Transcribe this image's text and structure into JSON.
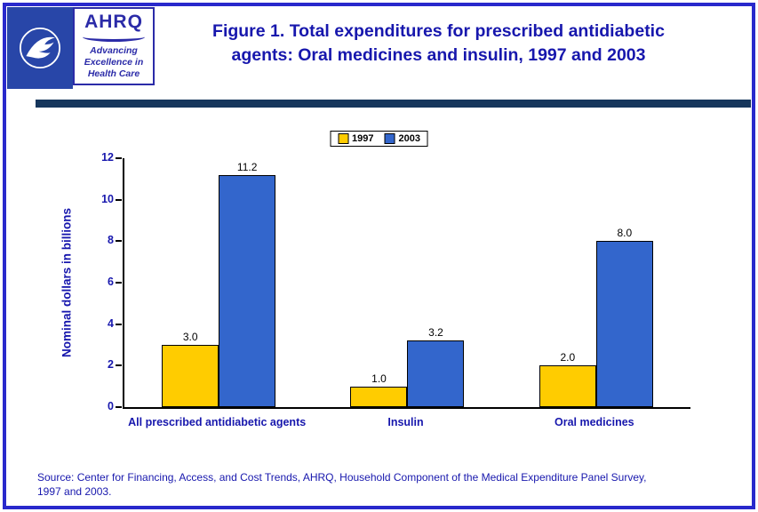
{
  "header": {
    "ahrq_logo_word": "AHRQ",
    "ahrq_tagline_line1": "Advancing",
    "ahrq_tagline_line2": "Excellence in",
    "ahrq_tagline_line3": "Health Care",
    "title_line1": "Figure 1. Total expenditures for prescribed antidiabetic",
    "title_line2": "agents: Oral medicines and insulin, 1997 and 2003"
  },
  "chart_data": {
    "type": "bar",
    "title": "Figure 1. Total expenditures for prescribed antidiabetic agents: Oral medicines and insulin, 1997 and 2003",
    "categories": [
      "All prescribed antidiabetic agents",
      "Insulin",
      "Oral medicines"
    ],
    "series": [
      {
        "name": "1997",
        "color": "#FFCC00",
        "values": [
          3.0,
          1.0,
          2.0
        ]
      },
      {
        "name": "2003",
        "color": "#3366CC",
        "values": [
          11.2,
          3.2,
          8.0
        ]
      }
    ],
    "xlabel": "",
    "ylabel": "Nominal dollars in billions",
    "ylim": [
      0,
      12
    ],
    "yticks": [
      0,
      2,
      4,
      6,
      8,
      10,
      12
    ],
    "grid": false,
    "legend_position": "top-center",
    "data_labels": true
  },
  "footer": {
    "source_line1": "Source: Center for Financing, Access, and Cost Trends, AHRQ, Household Component of the Medical Expenditure Panel Survey,",
    "source_line2": "1997 and 2003."
  },
  "colors": {
    "frame_blue": "#2929CC",
    "hhs_blue": "#2846A8",
    "ahrq_blue": "#2B2BA8",
    "title_blue": "#1717AD",
    "divider_navy": "#16365C",
    "bar_1997": "#FFCC00",
    "bar_2003": "#3366CC"
  }
}
